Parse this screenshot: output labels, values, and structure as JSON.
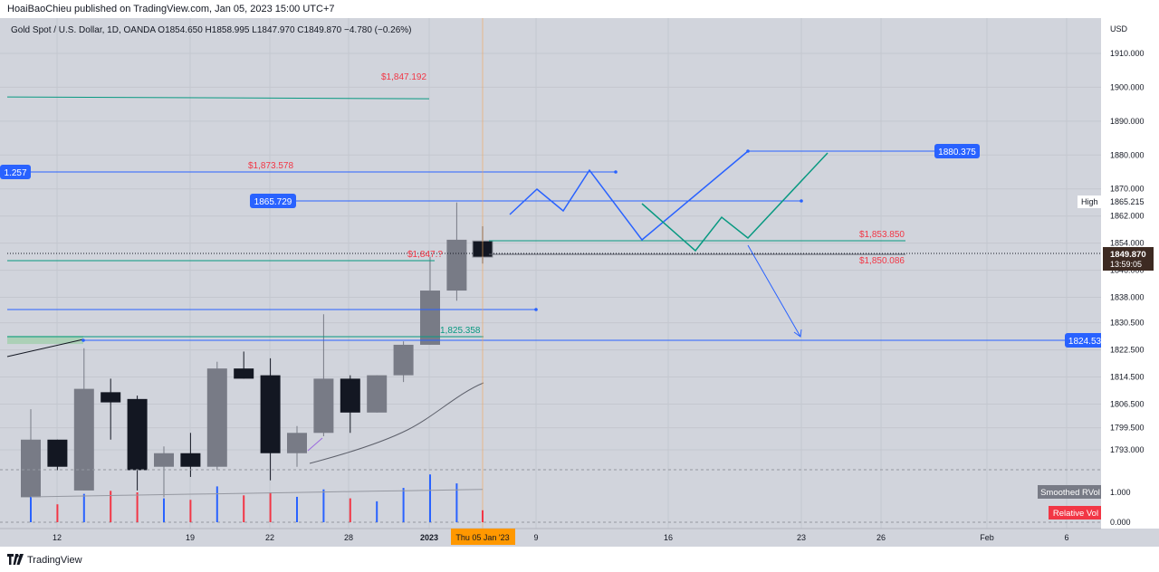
{
  "publish_note": "HoaiBaoChieu published on TradingView.com, Jan 05, 2023 15:00 UTC+7",
  "legend": "Gold Spot / U.S. Dollar, 1D, OANDA  O1854.650  H1858.995  L1847.970  C1849.870  −4.780 (−0.26%)",
  "footer_brand": "TradingView",
  "colors": {
    "background": "#d1d4dc",
    "bull": "#787b86",
    "bear": "#131722",
    "blue": "#2962ff",
    "green": "#089981",
    "red": "#f23645",
    "price_label": "#2962ff"
  },
  "chart_data": {
    "type": "candlestick",
    "currency_axis_label": "USD",
    "y_ticks": [
      "1910.000",
      "1900.000",
      "1890.000",
      "1880.000",
      "1870.000",
      "1862.000",
      "1854.000",
      "1846.000",
      "1838.000",
      "1830.500",
      "1822.500",
      "1814.500",
      "1806.500",
      "1799.500",
      "1793.000"
    ],
    "x_ticks": [
      {
        "label": "12",
        "date": "2022-12-12"
      },
      {
        "label": "19",
        "date": "2022-12-19"
      },
      {
        "label": "22",
        "date": "2022-12-22"
      },
      {
        "label": "28",
        "date": "2022-12-28"
      },
      {
        "label": "2023",
        "date": "2023-01-02"
      },
      {
        "label": "9",
        "date": "2023-01-09"
      },
      {
        "label": "16",
        "date": "2023-01-16"
      },
      {
        "label": "23",
        "date": "2023-01-23"
      },
      {
        "label": "26",
        "date": "2023-01-26"
      },
      {
        "label": "Feb",
        "date": "2023-02-01"
      },
      {
        "label": "6",
        "date": "2023-02-06"
      }
    ],
    "current_date_label": "Thu 05 Jan '23",
    "candles": [
      {
        "date": "2022-12-08",
        "open": 1779.0,
        "high": 1805.0,
        "low": 1779.0,
        "close": 1796.0,
        "vol": 0.85
      },
      {
        "date": "2022-12-09",
        "open": 1796.0,
        "high": 1796.0,
        "low": 1787.0,
        "close": 1788.0,
        "vol": 0.6
      },
      {
        "date": "2022-12-12",
        "open": 1781.0,
        "high": 1823.0,
        "low": 1781.0,
        "close": 1811.0,
        "vol": 0.95
      },
      {
        "date": "2022-12-13",
        "open": 1810.0,
        "high": 1814.0,
        "low": 1796.0,
        "close": 1807.0,
        "vol": 1.05
      },
      {
        "date": "2022-12-14",
        "open": 1808.0,
        "high": 1809.0,
        "low": 1781.0,
        "close": 1787.0,
        "vol": 1.0
      },
      {
        "date": "2022-12-15",
        "open": 1788.0,
        "high": 1794.0,
        "low": 1779.0,
        "close": 1792.0,
        "vol": 0.8
      },
      {
        "date": "2022-12-16",
        "open": 1792.0,
        "high": 1798.0,
        "low": 1785.0,
        "close": 1788.0,
        "vol": 0.75
      },
      {
        "date": "2022-12-19",
        "open": 1788.0,
        "high": 1819.0,
        "low": 1787.0,
        "close": 1817.0,
        "vol": 1.2
      },
      {
        "date": "2022-12-20",
        "open": 1817.0,
        "high": 1822.0,
        "low": 1814.0,
        "close": 1814.0,
        "vol": 0.9
      },
      {
        "date": "2022-12-21",
        "open": 1815.0,
        "high": 1820.0,
        "low": 1784.0,
        "close": 1792.0,
        "vol": 1.0
      },
      {
        "date": "2022-12-22",
        "open": 1792.0,
        "high": 1800.0,
        "low": 1788.0,
        "close": 1798.0,
        "vol": 0.85
      },
      {
        "date": "2022-12-23",
        "open": 1798.0,
        "high": 1833.0,
        "low": 1797.0,
        "close": 1814.0,
        "vol": 1.1
      },
      {
        "date": "2022-12-26",
        "open": 1814.0,
        "high": 1815.0,
        "low": 1798.0,
        "close": 1804.0,
        "vol": 0.8
      },
      {
        "date": "2022-12-27",
        "open": 1804.0,
        "high": 1815.0,
        "low": 1804.0,
        "close": 1815.0,
        "vol": 0.7
      },
      {
        "date": "2022-12-28",
        "open": 1815.0,
        "high": 1825.0,
        "low": 1813.0,
        "close": 1824.0,
        "vol": 1.15
      },
      {
        "date": "2022-12-29",
        "open": 1824.0,
        "high": 1850.0,
        "low": 1824.0,
        "close": 1840.0,
        "vol": 1.6
      },
      {
        "date": "2022-12-30",
        "open": 1840.0,
        "high": 1866.0,
        "low": 1837.0,
        "close": 1855.0,
        "vol": 1.3
      },
      {
        "date": "2023-01-05",
        "open": 1854.65,
        "high": 1858.995,
        "low": 1847.97,
        "close": 1849.87,
        "vol": 0.4
      }
    ],
    "annotations": [
      {
        "label": "$1,847.192",
        "price": 1847.192
      },
      {
        "label": "$1,873.578",
        "price": 1873.578
      },
      {
        "label": "1.257",
        "price": 1873.257
      },
      {
        "label": "1865.729",
        "price": 1865.729
      },
      {
        "label": "1880.375",
        "price": 1880.375
      },
      {
        "label": "$1,853.850",
        "price": 1853.85
      },
      {
        "label": "$1,850.086",
        "price": 1850.086
      },
      {
        "label": "$1,847.?",
        "price": 1847.2
      },
      {
        "label": "1,825.358",
        "price": 1825.358
      },
      {
        "label": "1824.53",
        "price": 1824.53
      }
    ],
    "axis_labels": {
      "high_label": "High",
      "high_value": "1865.215",
      "last_price": "1849.870",
      "countdown": "13:59:05"
    },
    "indicator": {
      "name": "Smoothed RVol",
      "name2": "Relative Vol",
      "ticks": [
        "1.000",
        "0.000"
      ]
    }
  }
}
